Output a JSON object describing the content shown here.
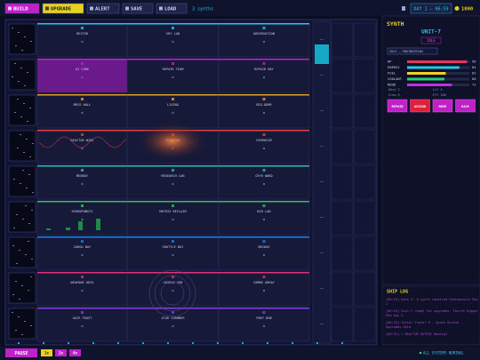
{
  "toolbar": {
    "buttons": [
      "BUILD",
      "UPGRADE",
      "ALERT",
      "SAVE",
      "LOAD"
    ],
    "synths": "3 synths",
    "day": "DAY 1 — 06:59",
    "credits": "1000"
  },
  "rooms": [
    [
      "RESTOR",
      "SKY LAB",
      "OBSERVATION"
    ],
    [
      "AI CORE",
      "REPAIR TEAM",
      "REPAIR BAY"
    ],
    [
      "MESS HALL",
      "LIVING",
      "BIO-DOME"
    ],
    [
      "REACTOR WIRE",
      "REACTOR",
      "HYDROSIM"
    ],
    [
      "MEDBAY",
      "RESEARCH LAB",
      "CRYO WARD"
    ],
    [
      "HYDROPONICS",
      "MATRIX RECLAIM",
      "BIO LAB"
    ],
    [
      "CARGO BAY",
      "SHUTTLE BAY",
      "BRIDGE"
    ],
    [
      "WEAPONS DECK",
      "SHIELD GEN",
      "COMMS ARRAY"
    ],
    [
      "GATE TRUST",
      "STAR CHAMBER",
      "PORT HUB"
    ]
  ],
  "panel": {
    "label": "SYNTH",
    "name": "UNIT-7",
    "status": "IDLE",
    "task": "IDLE — ENGINEERING",
    "stats": [
      {
        "name": "HP",
        "value": 96,
        "color": "#e8335a"
      },
      {
        "name": "ENERGY",
        "value": 84,
        "color": "#22c8e8"
      },
      {
        "name": "FUEL",
        "value": 62,
        "color": "#f0d020"
      },
      {
        "name": "COOLANT",
        "value": 60,
        "color": "#22d07a"
      },
      {
        "name": "MOOD",
        "value": 72,
        "color": "#c030e0"
      }
    ],
    "info": [
      "Deck 2",
      "Lvl 3",
      "Crew 0",
      "Eff 100"
    ],
    "actions": [
      "REPAIR",
      "ASSIGN",
      "MOVE",
      "HACK"
    ]
  },
  "log": {
    "title": "SHIP LOG",
    "entries": [
      "[06:59] Deck 2: A synth repaired Hydroponics Bay 2",
      "[06:54] Unit-7 ready for upgrades. Fourth Rigger Pod bay 2",
      "[06:45] Sector Tunnel 9 - Space Dusted - Upgrades Hold",
      "[06:32] ⚡ REACTOR OUTPUT Nominal"
    ]
  },
  "footer": {
    "pause": "PAUSE",
    "speeds": [
      "1x",
      "2x",
      "4x"
    ],
    "status": "ALL SYSTEMS NOMINAL"
  }
}
